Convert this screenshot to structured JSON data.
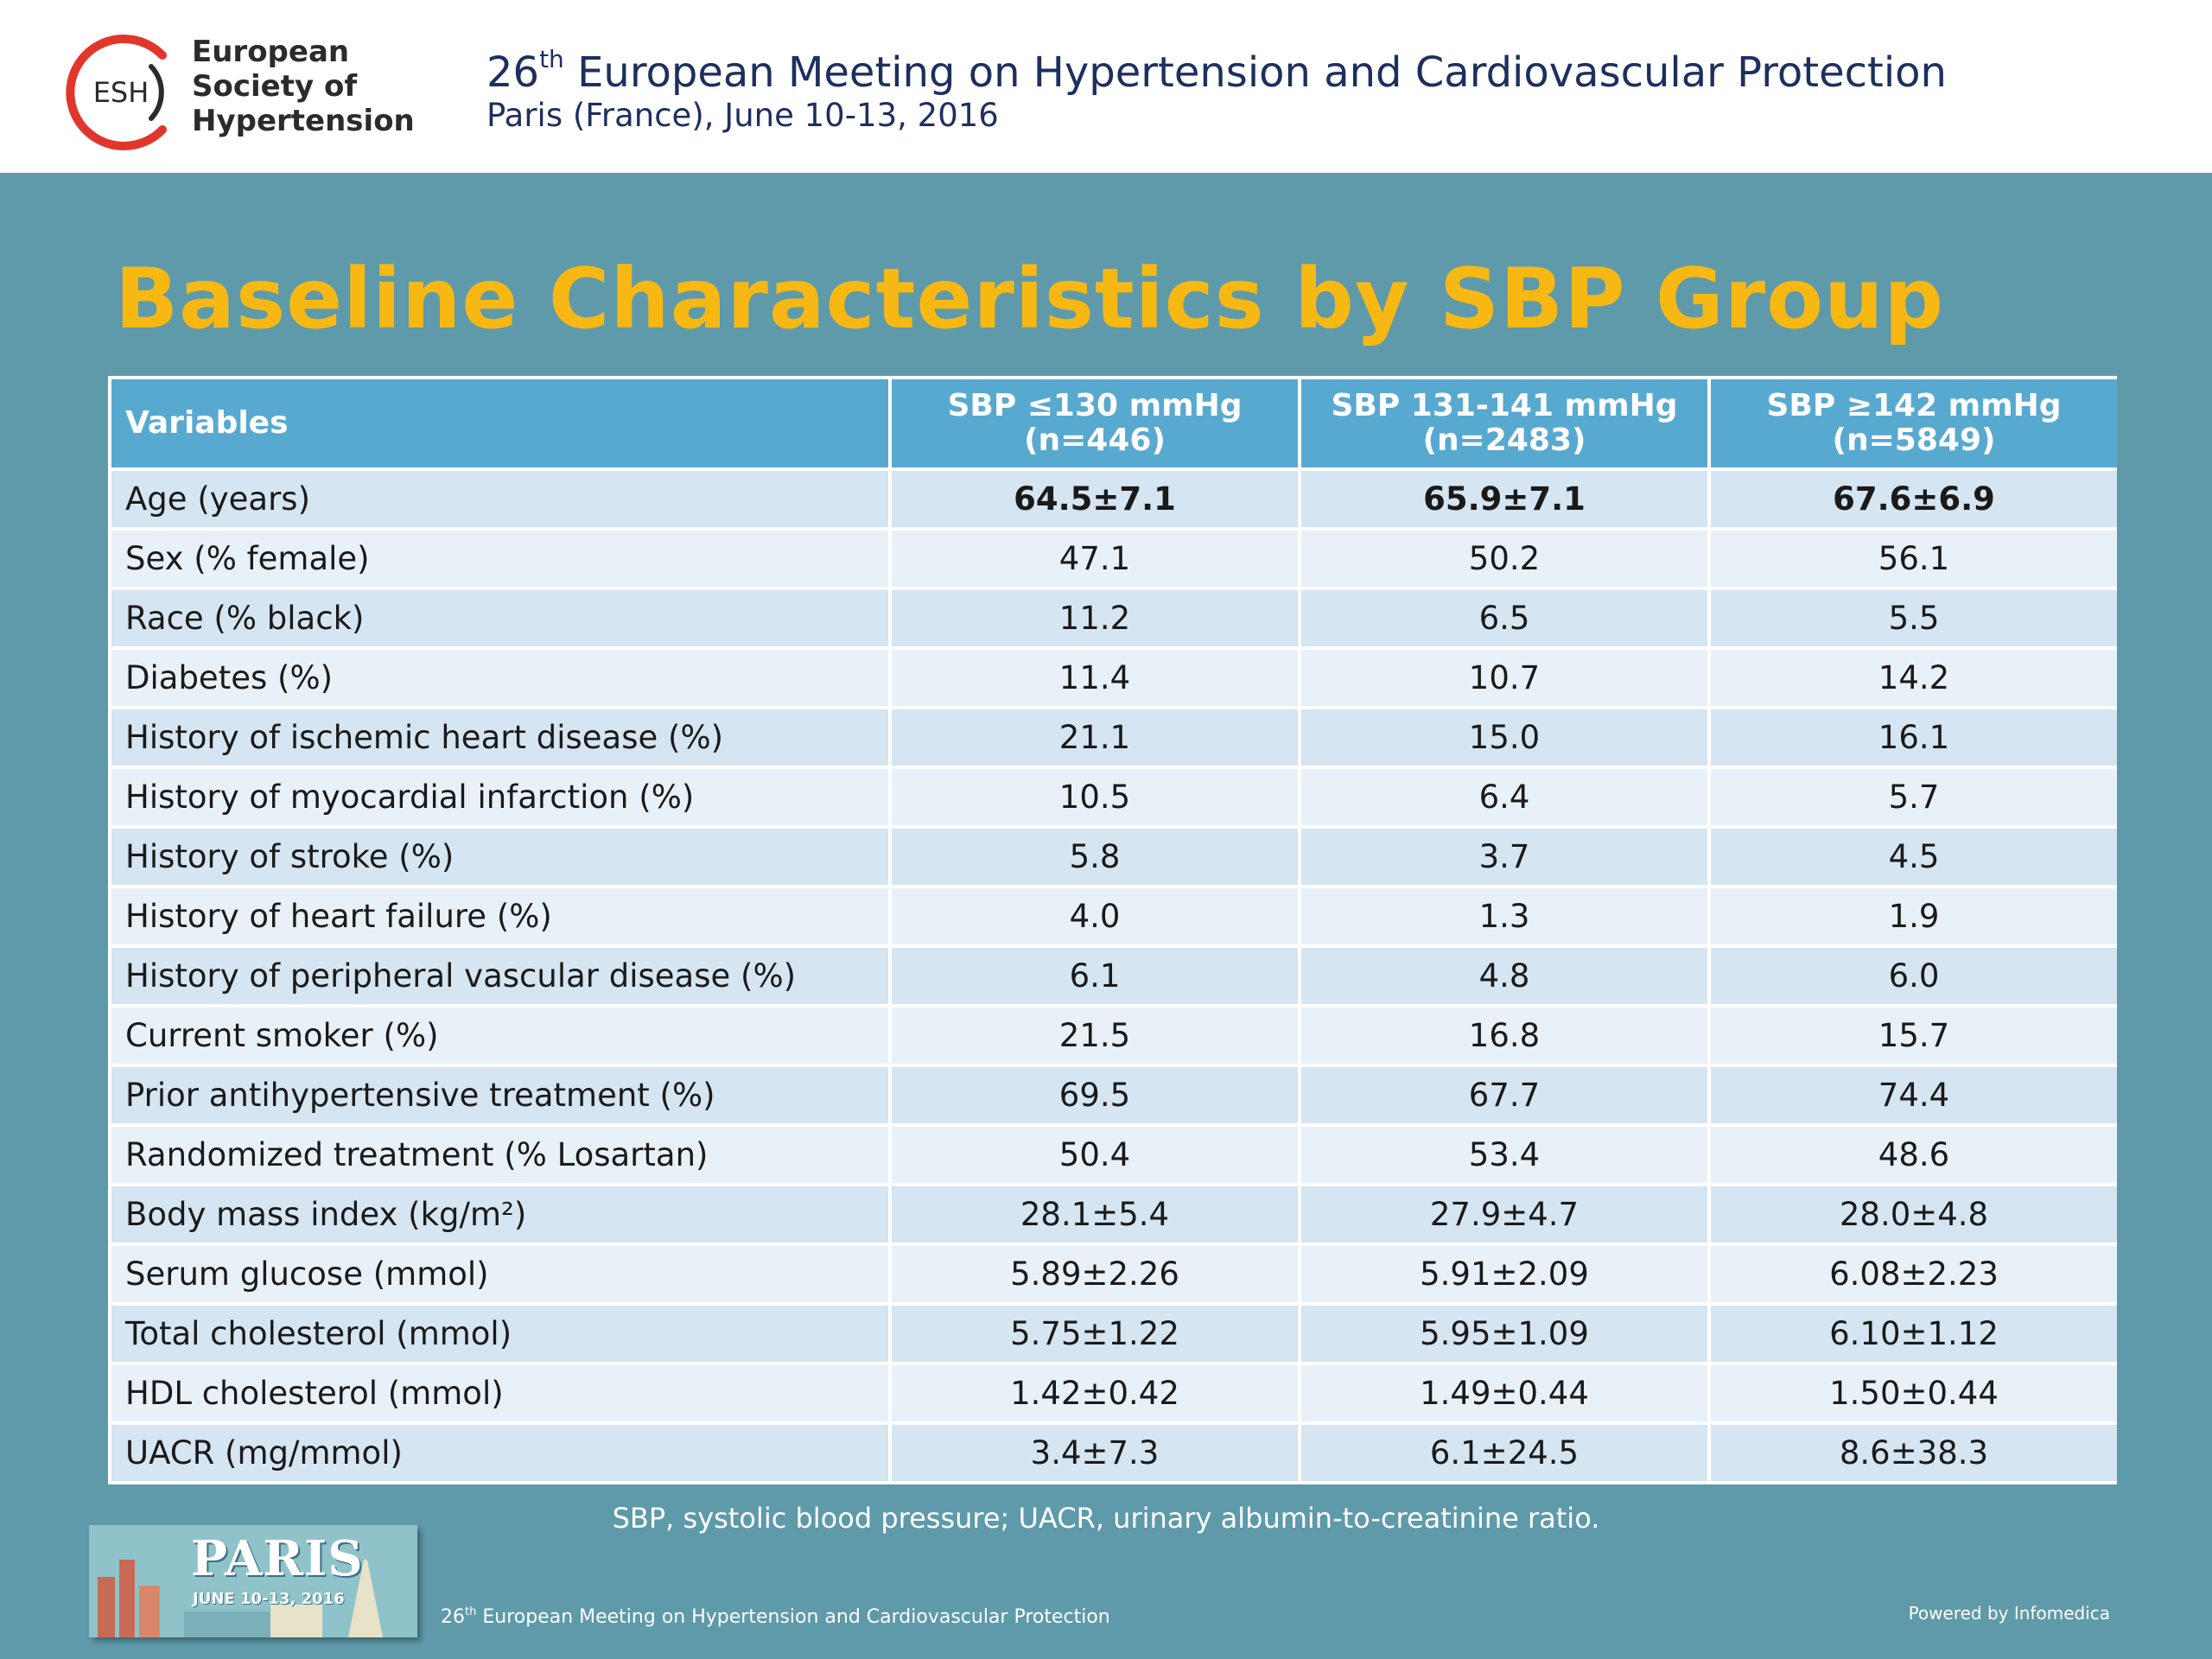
{
  "header": {
    "logo_text": "ESH",
    "org_lines": [
      "European",
      "Society of",
      "Hypertension"
    ],
    "meeting_ordinal": "26",
    "meeting_ordinal_suffix": "th",
    "meeting_title_rest": "European Meeting on Hypertension and Cardiovascular Protection",
    "meeting_subtitle": "Paris (France), June 10-13, 2016"
  },
  "slide": {
    "title": "Baseline Characteristics by SBP Group"
  },
  "table": {
    "headers": [
      {
        "line1": "Variables",
        "line2": ""
      },
      {
        "line1": "SBP ≤130 mmHg",
        "line2": "(n=446)"
      },
      {
        "line1": "SBP 131-141 mmHg",
        "line2": "(n=2483)"
      },
      {
        "line1": "SBP ≥142 mmHg",
        "line2": "(n=5849)"
      }
    ],
    "rows": [
      {
        "label": "Age (years)",
        "values": [
          "64.5±7.1",
          "65.9±7.1",
          "67.6±6.9"
        ],
        "bold": true
      },
      {
        "label": "Sex (% female)",
        "values": [
          "47.1",
          "50.2",
          "56.1"
        ]
      },
      {
        "label": "Race (% black)",
        "values": [
          "11.2",
          "6.5",
          "5.5"
        ]
      },
      {
        "label": "Diabetes (%)",
        "values": [
          "11.4",
          "10.7",
          "14.2"
        ]
      },
      {
        "label": "History of ischemic heart disease (%)",
        "values": [
          "21.1",
          "15.0",
          "16.1"
        ]
      },
      {
        "label": "History of myocardial infarction (%)",
        "values": [
          "10.5",
          "6.4",
          "5.7"
        ]
      },
      {
        "label": "History of stroke (%)",
        "values": [
          "5.8",
          "3.7",
          "4.5"
        ]
      },
      {
        "label": "History of heart failure (%)",
        "values": [
          "4.0",
          "1.3",
          "1.9"
        ]
      },
      {
        "label": "History of peripheral vascular disease (%)",
        "values": [
          "6.1",
          "4.8",
          "6.0"
        ]
      },
      {
        "label": "Current smoker (%)",
        "values": [
          "21.5",
          "16.8",
          "15.7"
        ]
      },
      {
        "label": "Prior antihypertensive treatment (%)",
        "values": [
          "69.5",
          "67.7",
          "74.4"
        ]
      },
      {
        "label": "Randomized treatment (% Losartan)",
        "values": [
          "50.4",
          "53.4",
          "48.6"
        ]
      },
      {
        "label": "Body mass index (kg/m²)",
        "values": [
          "28.1±5.4",
          "27.9±4.7",
          "28.0±4.8"
        ]
      },
      {
        "label": "Serum glucose (mmol)",
        "values": [
          "5.89±2.26",
          "5.91±2.09",
          "6.08±2.23"
        ]
      },
      {
        "label": "Total cholesterol (mmol)",
        "values": [
          "5.75±1.22",
          "5.95±1.09",
          "6.10±1.12"
        ]
      },
      {
        "label": "HDL cholesterol (mmol)",
        "values": [
          "1.42±0.42",
          "1.49±0.44",
          "1.50±0.44"
        ]
      },
      {
        "label": "UACR (mg/mmol)",
        "values": [
          "3.4±7.3",
          "6.1±24.5",
          "8.6±38.3"
        ]
      }
    ]
  },
  "footnote": "SBP, systolic blood pressure; UACR, urinary albumin-to-creatinine ratio.",
  "footer": {
    "badge_title": "PARIS",
    "badge_date": "JUNE 10-13, 2016",
    "ordinal": "26",
    "ordinal_suffix": "th",
    "meeting_rest": "European Meeting on Hypertension and Cardiovascular Protection",
    "powered_by": "Powered by Infomedica"
  },
  "colors": {
    "background": "#5e9aaa",
    "title": "#f7b814",
    "header_cell": "#58a9d0",
    "row_odd": "#d5e5f1",
    "row_even": "#e9f1f8",
    "logo_ring": "#e2362d"
  }
}
